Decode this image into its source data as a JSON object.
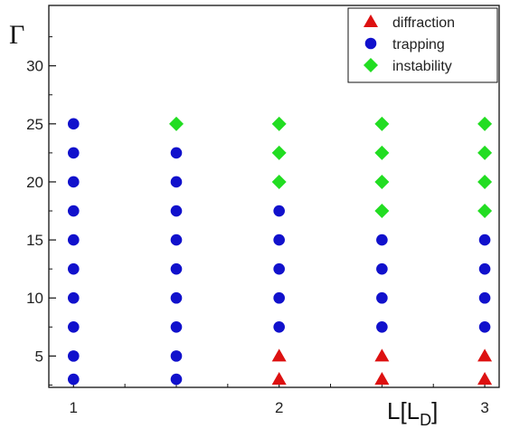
{
  "chart_data": {
    "type": "scatter",
    "title": "",
    "ylabel": "Γ",
    "xlabel": {
      "main": "L[L",
      "sub": "D",
      "close": "]"
    },
    "xlim": [
      0.88,
      3.07
    ],
    "ylim": [
      2.3,
      35.2
    ],
    "x_ticks": [
      1,
      2,
      3
    ],
    "y_ticks": [
      5,
      10,
      15,
      20,
      25,
      30
    ],
    "x_minor_ticks": [
      1.25,
      1.5,
      1.75,
      2.25,
      2.5,
      2.75
    ],
    "y_minor_ticks": [
      2.5,
      7.5,
      12.5,
      17.5,
      22.5,
      27.5,
      32.5
    ],
    "legend_position": "top-right",
    "series": [
      {
        "name": "diffraction",
        "marker": "triangle",
        "color": "#dd1111",
        "points": [
          {
            "x": 2.0,
            "y": 3.0
          },
          {
            "x": 2.0,
            "y": 5.0
          },
          {
            "x": 2.5,
            "y": 3.0
          },
          {
            "x": 2.5,
            "y": 5.0
          },
          {
            "x": 3.0,
            "y": 3.0
          },
          {
            "x": 3.0,
            "y": 5.0
          }
        ]
      },
      {
        "name": "trapping",
        "marker": "circle",
        "color": "#1111cc",
        "points": [
          {
            "x": 1.0,
            "y": 3.0
          },
          {
            "x": 1.0,
            "y": 5.0
          },
          {
            "x": 1.0,
            "y": 7.5
          },
          {
            "x": 1.0,
            "y": 10.0
          },
          {
            "x": 1.0,
            "y": 12.5
          },
          {
            "x": 1.0,
            "y": 15.0
          },
          {
            "x": 1.0,
            "y": 17.5
          },
          {
            "x": 1.0,
            "y": 20.0
          },
          {
            "x": 1.0,
            "y": 22.5
          },
          {
            "x": 1.0,
            "y": 25.0
          },
          {
            "x": 1.5,
            "y": 3.0
          },
          {
            "x": 1.5,
            "y": 5.0
          },
          {
            "x": 1.5,
            "y": 7.5
          },
          {
            "x": 1.5,
            "y": 10.0
          },
          {
            "x": 1.5,
            "y": 12.5
          },
          {
            "x": 1.5,
            "y": 15.0
          },
          {
            "x": 1.5,
            "y": 17.5
          },
          {
            "x": 1.5,
            "y": 20.0
          },
          {
            "x": 1.5,
            "y": 22.5
          },
          {
            "x": 2.0,
            "y": 7.5
          },
          {
            "x": 2.0,
            "y": 10.0
          },
          {
            "x": 2.0,
            "y": 12.5
          },
          {
            "x": 2.0,
            "y": 15.0
          },
          {
            "x": 2.0,
            "y": 17.5
          },
          {
            "x": 2.5,
            "y": 7.5
          },
          {
            "x": 2.5,
            "y": 10.0
          },
          {
            "x": 2.5,
            "y": 12.5
          },
          {
            "x": 2.5,
            "y": 15.0
          },
          {
            "x": 3.0,
            "y": 7.5
          },
          {
            "x": 3.0,
            "y": 10.0
          },
          {
            "x": 3.0,
            "y": 12.5
          },
          {
            "x": 3.0,
            "y": 15.0
          }
        ]
      },
      {
        "name": "instability",
        "marker": "diamond",
        "color": "#22dd22",
        "points": [
          {
            "x": 1.5,
            "y": 25.0
          },
          {
            "x": 2.0,
            "y": 20.0
          },
          {
            "x": 2.0,
            "y": 22.5
          },
          {
            "x": 2.0,
            "y": 25.0
          },
          {
            "x": 2.5,
            "y": 17.5
          },
          {
            "x": 2.5,
            "y": 20.0
          },
          {
            "x": 2.5,
            "y": 22.5
          },
          {
            "x": 2.5,
            "y": 25.0
          },
          {
            "x": 3.0,
            "y": 17.5
          },
          {
            "x": 3.0,
            "y": 20.0
          },
          {
            "x": 3.0,
            "y": 22.5
          },
          {
            "x": 3.0,
            "y": 25.0
          }
        ]
      }
    ]
  }
}
